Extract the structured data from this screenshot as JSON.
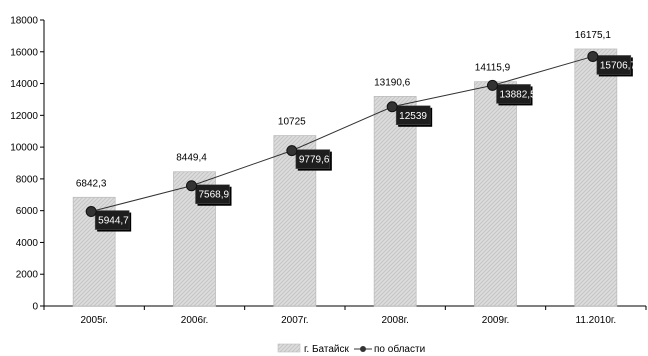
{
  "chart_data": {
    "type": "bar",
    "categories": [
      "2005г.",
      "2006г.",
      "2007г.",
      "2008г.",
      "2009г.",
      "11.2010г."
    ],
    "ylim": [
      0,
      18000
    ],
    "yticks": [
      0,
      2000,
      4000,
      6000,
      8000,
      10000,
      12000,
      14000,
      16000,
      18000
    ],
    "grid": false,
    "legend_position": "bottom",
    "colors": {
      "bar_fill": "#dddddd",
      "bar_hatch": "#c4c4c4",
      "line": "#333333",
      "label_box": "#1e1e1e"
    },
    "series": [
      {
        "name": "г. Батайск",
        "kind": "bar",
        "values": [
          6842.3,
          8449.4,
          10725,
          13190.6,
          14115.9,
          16175.1
        ],
        "labels": [
          "6842,3",
          "8449,4",
          "10725",
          "13190,6",
          "14115,9",
          "16175,1"
        ]
      },
      {
        "name": "по области",
        "kind": "line",
        "values": [
          5944.7,
          7568.9,
          9779.6,
          12539,
          13882.5,
          15706.7
        ],
        "labels": [
          "5944,7",
          "7568,9",
          "9779,6",
          "12539",
          "13882,5",
          "15706,7"
        ]
      }
    ]
  }
}
